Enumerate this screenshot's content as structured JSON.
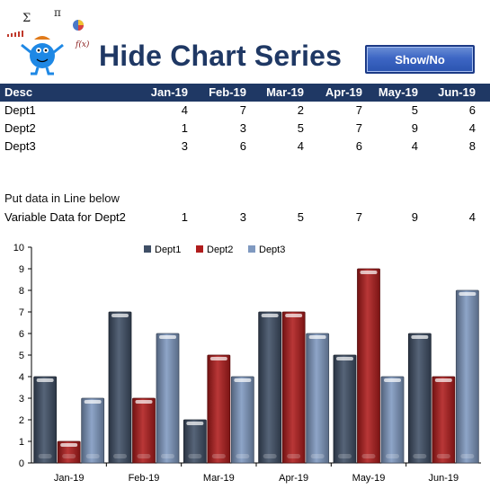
{
  "header": {
    "title": "Hide Chart Series",
    "button_label": "Show/No"
  },
  "logo": {
    "symbols": [
      "Σ",
      "π",
      "f(x)"
    ]
  },
  "table": {
    "desc_header": "Desc",
    "months": [
      "Jan-19",
      "Feb-19",
      "Mar-19",
      "Apr-19",
      "May-19",
      "Jun-19"
    ],
    "rows": [
      {
        "name": "Dept1",
        "values": [
          4,
          7,
          2,
          7,
          5,
          6
        ]
      },
      {
        "name": "Dept2",
        "values": [
          1,
          3,
          5,
          7,
          9,
          4
        ]
      },
      {
        "name": "Dept3",
        "values": [
          3,
          6,
          4,
          6,
          4,
          8
        ]
      }
    ]
  },
  "variable": {
    "note": "Put data in Line below",
    "label": "Variable Data for Dept2",
    "values": [
      1,
      3,
      5,
      7,
      9,
      4
    ]
  },
  "chart_data": {
    "type": "bar",
    "categories": [
      "Jan-19",
      "Feb-19",
      "Mar-19",
      "Apr-19",
      "May-19",
      "Jun-19"
    ],
    "series": [
      {
        "name": "Dept1",
        "values": [
          4,
          7,
          2,
          7,
          5,
          6
        ],
        "color": "#3f4f66"
      },
      {
        "name": "Dept2",
        "values": [
          1,
          3,
          5,
          7,
          9,
          4
        ],
        "color": "#b01c1c"
      },
      {
        "name": "Dept3",
        "values": [
          3,
          6,
          4,
          6,
          4,
          8
        ],
        "color": "#7f99c0"
      }
    ],
    "yticks": [
      "0",
      "1",
      "2",
      "3",
      "4",
      "5",
      "6",
      "7",
      "8",
      "9",
      "10"
    ],
    "ylim": [
      0,
      10
    ],
    "legend_position": "top",
    "grid": false
  }
}
